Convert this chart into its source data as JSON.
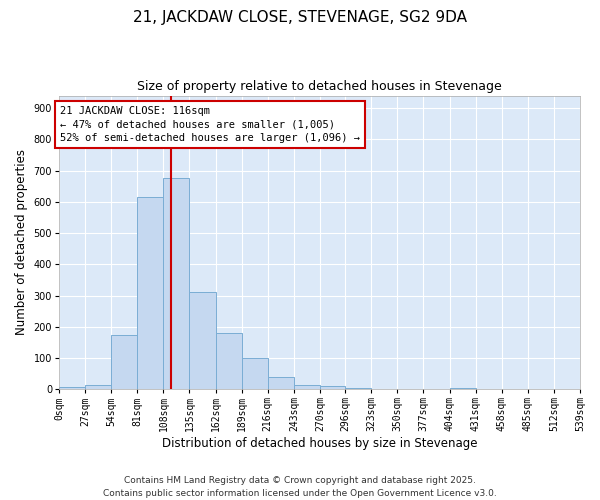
{
  "title1": "21, JACKDAW CLOSE, STEVENAGE, SG2 9DA",
  "title2": "Size of property relative to detached houses in Stevenage",
  "xlabel": "Distribution of detached houses by size in Stevenage",
  "ylabel": "Number of detached properties",
  "bin_edges": [
    0,
    27,
    54,
    81,
    108,
    135,
    162,
    189,
    216,
    243,
    270,
    296,
    323,
    350,
    377,
    404,
    431,
    458,
    485,
    512,
    539
  ],
  "bar_heights": [
    8,
    15,
    175,
    615,
    675,
    310,
    180,
    100,
    40,
    15,
    10,
    5,
    0,
    0,
    0,
    5,
    0,
    0,
    0,
    0
  ],
  "bar_facecolor": "#c5d8f0",
  "bar_edgecolor": "#7aadd4",
  "bar_linewidth": 0.7,
  "vline_x": 116,
  "vline_color": "#cc0000",
  "vline_linewidth": 1.5,
  "annotation_line1": "21 JACKDAW CLOSE: 116sqm",
  "annotation_line2": "← 47% of detached houses are smaller (1,005)",
  "annotation_line3": "52% of semi-detached houses are larger (1,096) →",
  "annotation_fontsize": 7.5,
  "ylim": [
    0,
    940
  ],
  "yticks": [
    0,
    100,
    200,
    300,
    400,
    500,
    600,
    700,
    800,
    900
  ],
  "background_color": "#dce9f8",
  "grid_color": "#ffffff",
  "title1_fontsize": 11,
  "title2_fontsize": 9,
  "tick_fontsize": 7,
  "label_fontsize": 8.5,
  "footer_text": "Contains HM Land Registry data © Crown copyright and database right 2025.\nContains public sector information licensed under the Open Government Licence v3.0.",
  "footer_fontsize": 6.5
}
